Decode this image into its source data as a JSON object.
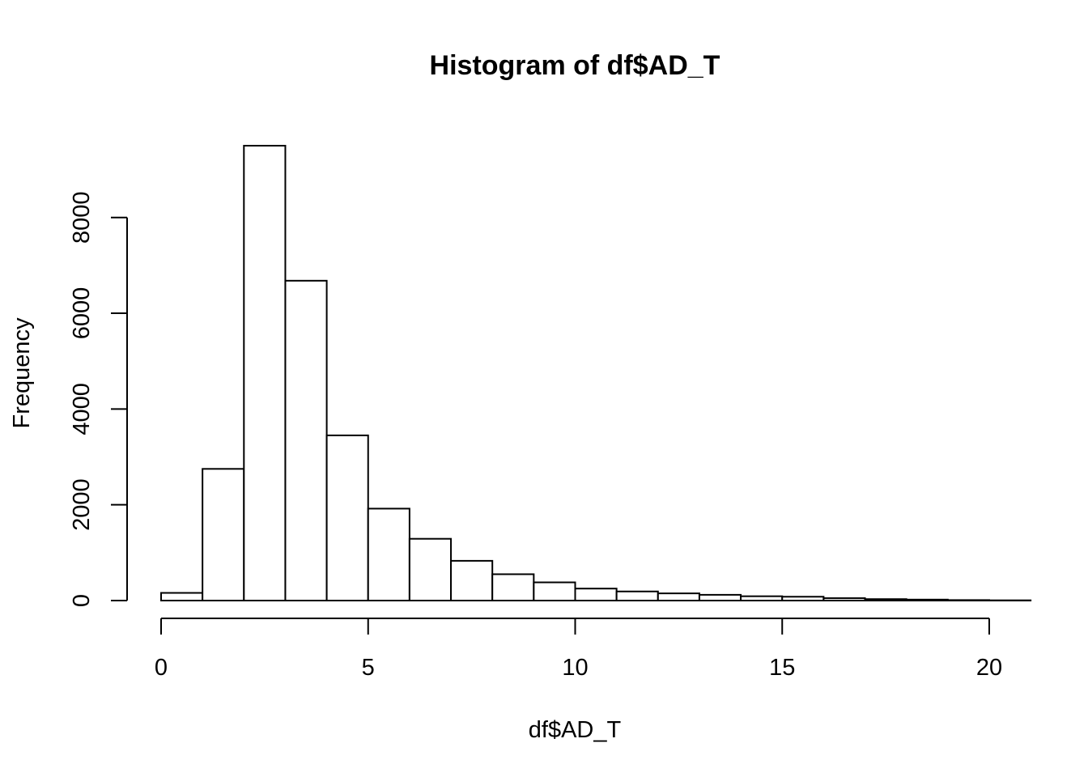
{
  "chart_data": {
    "type": "bar",
    "subtype": "histogram",
    "title": "Histogram of df$AD_T",
    "xlabel": "df$AD_T",
    "ylabel": "Frequency",
    "bin_width": 1,
    "bins": [
      {
        "start": 0,
        "end": 1,
        "count": 160
      },
      {
        "start": 1,
        "end": 2,
        "count": 2750
      },
      {
        "start": 2,
        "end": 3,
        "count": 9500
      },
      {
        "start": 3,
        "end": 4,
        "count": 6680
      },
      {
        "start": 4,
        "end": 5,
        "count": 3450
      },
      {
        "start": 5,
        "end": 6,
        "count": 1920
      },
      {
        "start": 6,
        "end": 7,
        "count": 1290
      },
      {
        "start": 7,
        "end": 8,
        "count": 830
      },
      {
        "start": 8,
        "end": 9,
        "count": 550
      },
      {
        "start": 9,
        "end": 10,
        "count": 380
      },
      {
        "start": 10,
        "end": 11,
        "count": 250
      },
      {
        "start": 11,
        "end": 12,
        "count": 190
      },
      {
        "start": 12,
        "end": 13,
        "count": 150
      },
      {
        "start": 13,
        "end": 14,
        "count": 120
      },
      {
        "start": 14,
        "end": 15,
        "count": 90
      },
      {
        "start": 15,
        "end": 16,
        "count": 80
      },
      {
        "start": 16,
        "end": 17,
        "count": 50
      },
      {
        "start": 17,
        "end": 18,
        "count": 30
      },
      {
        "start": 18,
        "end": 19,
        "count": 20
      },
      {
        "start": 19,
        "end": 20,
        "count": 10
      },
      {
        "start": 20,
        "end": 21,
        "count": 5
      }
    ],
    "x_ticks": [
      {
        "value": 0,
        "label": "0"
      },
      {
        "value": 5,
        "label": "5"
      },
      {
        "value": 10,
        "label": "10"
      },
      {
        "value": 15,
        "label": "15"
      },
      {
        "value": 20,
        "label": "20"
      }
    ],
    "y_ticks": [
      {
        "value": 0,
        "label": "0"
      },
      {
        "value": 2000,
        "label": "2000"
      },
      {
        "value": 4000,
        "label": "4000"
      },
      {
        "value": 6000,
        "label": "6000"
      },
      {
        "value": 8000,
        "label": "8000"
      }
    ],
    "xlim": [
      0,
      21
    ],
    "ylim": [
      0,
      9500
    ],
    "grid": false,
    "legend": "none",
    "colors": {
      "bar_fill": "#ffffff",
      "bar_stroke": "#000000",
      "axis": "#000000",
      "text": "#000000"
    }
  }
}
